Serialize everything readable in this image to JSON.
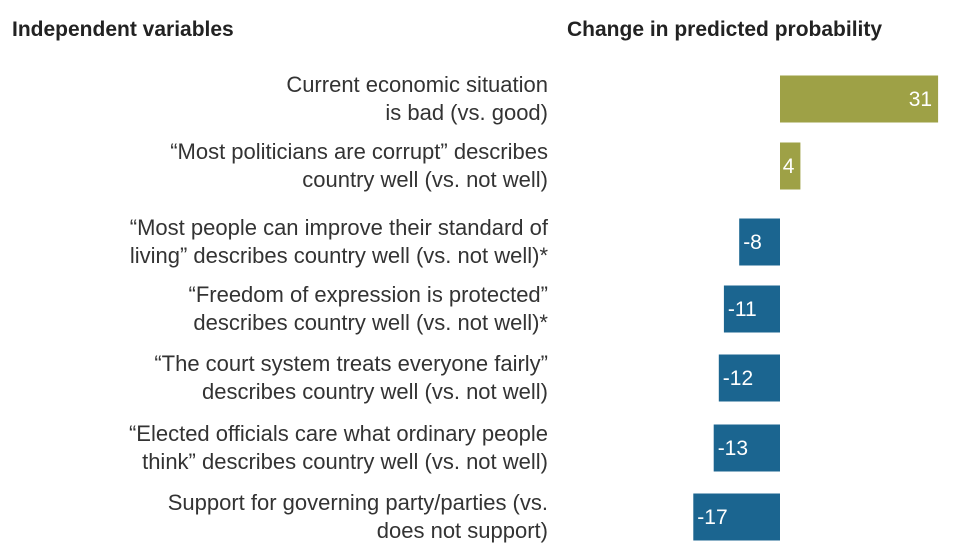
{
  "headers": {
    "left": "Independent variables",
    "right": "Change in predicted probability"
  },
  "chart_data": {
    "type": "bar",
    "orientation": "horizontal",
    "xlabel": "Change in predicted probability",
    "ylabel": "Independent variables",
    "baseline": 0,
    "categories": [
      [
        "Current economic situation",
        "is bad (vs. good)"
      ],
      [
        "“Most politicians are corrupt” describes",
        "country well (vs. not well)"
      ],
      [
        "“Most people can improve their standard of",
        "living” describes country well (vs. not well)*"
      ],
      [
        "“Freedom of expression is protected”",
        "describes country well (vs. not well)*"
      ],
      [
        "“The court system treats everyone fairly”",
        "describes country well (vs. not well)"
      ],
      [
        "“Elected officials care what ordinary people",
        "think” describes country well (vs. not well)"
      ],
      [
        "Support for governing party/parties (vs.",
        "does not support)"
      ]
    ],
    "values": [
      31,
      4,
      -8,
      -11,
      -12,
      -13,
      -17
    ],
    "colors": {
      "positive": "#9ea146",
      "negative": "#1b6590",
      "label": "#ffffff"
    }
  }
}
